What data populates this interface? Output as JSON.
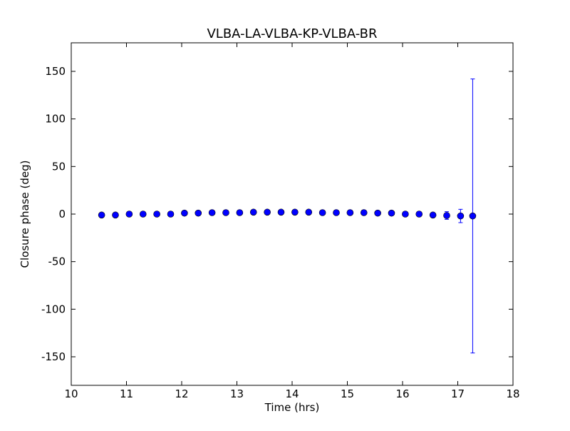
{
  "chart_data": {
    "type": "errorbar",
    "title": "VLBA-LA-VLBA-KP-VLBA-BR",
    "xlabel": "Time (hrs)",
    "ylabel": "Closure phase (deg)",
    "x": [
      10.55,
      10.8,
      11.05,
      11.3,
      11.55,
      11.8,
      12.05,
      12.3,
      12.55,
      12.8,
      13.05,
      13.3,
      13.55,
      13.8,
      14.05,
      14.3,
      14.55,
      14.8,
      15.05,
      15.3,
      15.55,
      15.8,
      16.05,
      16.3,
      16.55,
      16.8,
      17.05,
      17.27
    ],
    "values": [
      -1,
      -1,
      0,
      0,
      0,
      0,
      1,
      1,
      1.5,
      1.5,
      1.5,
      2,
      2,
      2,
      2,
      2,
      1.5,
      1.5,
      1.5,
      1.5,
      1,
      1,
      0,
      0,
      -1,
      -1.5,
      -2,
      -2
    ],
    "errors": [
      1,
      1,
      1,
      1,
      1,
      1,
      1,
      1,
      1,
      1,
      1,
      1,
      1,
      1,
      1,
      1,
      1,
      1,
      1,
      1,
      1,
      1,
      1,
      1,
      1.5,
      4,
      7,
      144
    ],
    "color": "#0000ff",
    "xlim": [
      10,
      18
    ],
    "xticks": [
      10,
      11,
      12,
      13,
      14,
      15,
      16,
      17,
      18
    ],
    "ylim": [
      -180,
      180
    ],
    "yticks": [
      -150,
      -100,
      -50,
      0,
      50,
      100,
      150
    ]
  }
}
